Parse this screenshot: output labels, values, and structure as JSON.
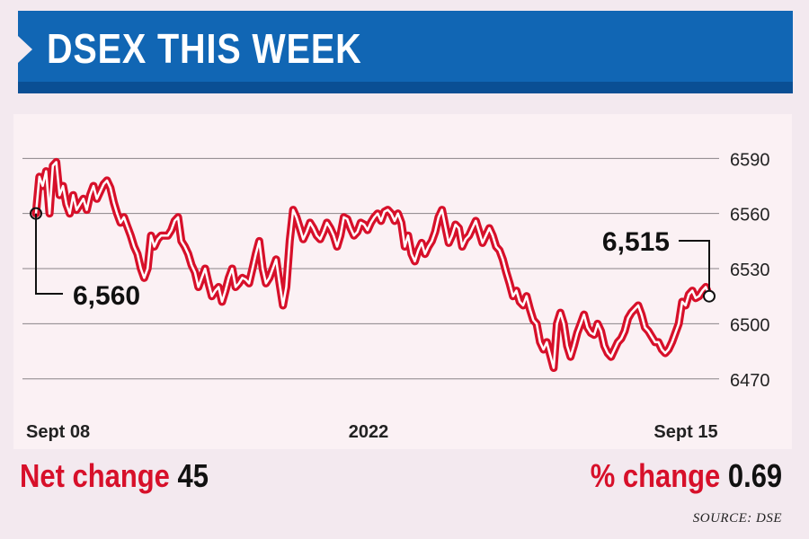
{
  "header": {
    "title": "DSEX THIS WEEK"
  },
  "chart_data": {
    "type": "line",
    "title": "DSEX THIS WEEK",
    "x_labels": [
      "Sept 08",
      "2022",
      "Sept 15"
    ],
    "y_ticks": [
      6590,
      6560,
      6530,
      6500,
      6470
    ],
    "y_tick_labels": [
      "6590",
      "6560",
      "6530",
      "6500",
      "6470"
    ],
    "ylim": [
      6465,
      6597
    ],
    "grid": "horizontal",
    "line_color": "#d7102a",
    "start": {
      "value": 6560,
      "label": "6,560"
    },
    "end": {
      "value": 6515,
      "label": "6,515"
    },
    "series": [
      {
        "values": [
          6560,
          6580,
          6575,
          6583,
          6560,
          6586,
          6588,
          6570,
          6575,
          6565,
          6560,
          6570,
          6562,
          6565,
          6568,
          6562,
          6570,
          6575,
          6568,
          6572,
          6576,
          6578,
          6574,
          6566,
          6560,
          6555,
          6558,
          6553,
          6548,
          6542,
          6538,
          6530,
          6525,
          6530,
          6548,
          6542,
          6546,
          6548,
          6548,
          6548,
          6551,
          6556,
          6558,
          6545,
          6542,
          6538,
          6532,
          6528,
          6520,
          6525,
          6530,
          6522,
          6515,
          6518,
          6520,
          6512,
          6518,
          6525,
          6530,
          6520,
          6522,
          6525,
          6524,
          6522,
          6530,
          6538,
          6545,
          6530,
          6522,
          6525,
          6530,
          6535,
          6522,
          6510,
          6520,
          6545,
          6562,
          6558,
          6552,
          6546,
          6550,
          6555,
          6552,
          6548,
          6546,
          6550,
          6555,
          6552,
          6548,
          6542,
          6548,
          6558,
          6557,
          6552,
          6548,
          6550,
          6555,
          6554,
          6551,
          6555,
          6558,
          6560,
          6556,
          6561,
          6562,
          6560,
          6556,
          6560,
          6555,
          6542,
          6548,
          6538,
          6534,
          6540,
          6544,
          6538,
          6542,
          6545,
          6550,
          6558,
          6562,
          6553,
          6544,
          6548,
          6554,
          6552,
          6542,
          6546,
          6548,
          6552,
          6556,
          6550,
          6544,
          6548,
          6552,
          6548,
          6542,
          6540,
          6535,
          6528,
          6522,
          6515,
          6518,
          6512,
          6510,
          6515,
          6508,
          6502,
          6500,
          6490,
          6486,
          6490,
          6483,
          6476,
          6500,
          6506,
          6500,
          6488,
          6482,
          6488,
          6495,
          6500,
          6505,
          6498,
          6495,
          6494,
          6500,
          6496,
          6488,
          6484,
          6482,
          6486,
          6490,
          6492,
          6496,
          6503,
          6506,
          6508,
          6510,
          6505,
          6498,
          6496,
          6493,
          6490,
          6490,
          6486,
          6484,
          6486,
          6490,
          6495,
          6500,
          6512,
          6510,
          6516,
          6518,
          6514,
          6515,
          6518,
          6520,
          6515
        ]
      }
    ]
  },
  "footer": {
    "net_label": "Net change",
    "net_value": "45",
    "pct_label": "% change",
    "pct_value": "0.69",
    "source": "SOURCE: DSE"
  }
}
